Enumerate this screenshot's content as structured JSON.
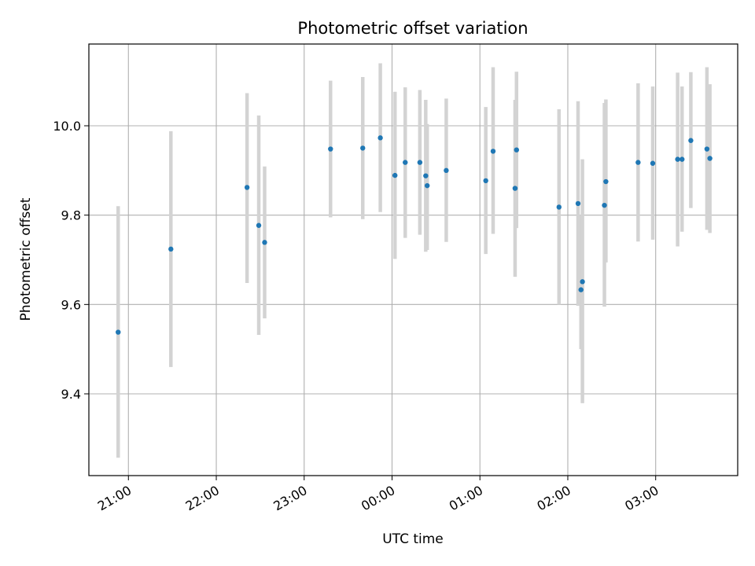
{
  "chart_data": {
    "type": "scatter",
    "title": "Photometric offset variation",
    "xlabel": "UTC time",
    "ylabel": "Photometric offset",
    "x_ticks": [
      "21:00",
      "22:00",
      "23:00",
      "00:00",
      "01:00",
      "02:00",
      "03:00"
    ],
    "y_ticks": [
      "9.4",
      "9.6",
      "9.8",
      "10.0"
    ],
    "xlim": [
      "20:33",
      "03:56"
    ],
    "ylim": [
      9.217,
      10.183
    ],
    "grid": true,
    "colors": {
      "point": "#1f77b4",
      "errorbar": "#d3d3d3",
      "grid": "#b0b0b0"
    },
    "points": [
      {
        "t": "20:53",
        "y": 9.538,
        "lo": 9.257,
        "hi": 9.82
      },
      {
        "t": "21:29",
        "y": 9.724,
        "lo": 9.46,
        "hi": 9.988
      },
      {
        "t": "22:21",
        "y": 9.862,
        "lo": 9.648,
        "hi": 10.073
      },
      {
        "t": "22:29",
        "y": 9.777,
        "lo": 9.532,
        "hi": 10.023
      },
      {
        "t": "22:33",
        "y": 9.739,
        "lo": 9.569,
        "hi": 9.909
      },
      {
        "t": "23:18",
        "y": 9.948,
        "lo": 9.795,
        "hi": 10.101
      },
      {
        "t": "23:40",
        "y": 9.95,
        "lo": 9.791,
        "hi": 10.109
      },
      {
        "t": "23:52",
        "y": 9.973,
        "lo": 9.807,
        "hi": 10.14
      },
      {
        "t": "00:02",
        "y": 9.889,
        "lo": 9.702,
        "hi": 10.076
      },
      {
        "t": "00:09",
        "y": 9.918,
        "lo": 9.749,
        "hi": 10.086
      },
      {
        "t": "00:19",
        "y": 9.918,
        "lo": 9.756,
        "hi": 10.08
      },
      {
        "t": "00:23",
        "y": 9.888,
        "lo": 9.718,
        "hi": 10.058
      },
      {
        "t": "00:24",
        "y": 9.866,
        "lo": 9.722,
        "hi": 10.004
      },
      {
        "t": "00:37",
        "y": 9.9,
        "lo": 9.74,
        "hi": 10.061
      },
      {
        "t": "01:04",
        "y": 9.877,
        "lo": 9.713,
        "hi": 10.042
      },
      {
        "t": "01:09",
        "y": 9.943,
        "lo": 9.758,
        "hi": 10.131
      },
      {
        "t": "01:24",
        "y": 9.86,
        "lo": 9.662,
        "hi": 10.058
      },
      {
        "t": "01:25",
        "y": 9.946,
        "lo": 9.771,
        "hi": 10.121
      },
      {
        "t": "01:54",
        "y": 9.818,
        "lo": 9.6,
        "hi": 10.037
      },
      {
        "t": "02:07",
        "y": 9.826,
        "lo": 9.597,
        "hi": 10.055
      },
      {
        "t": "02:09",
        "y": 9.633,
        "lo": 9.5,
        "hi": 9.8
      },
      {
        "t": "02:10",
        "y": 9.651,
        "lo": 9.379,
        "hi": 9.925
      },
      {
        "t": "02:25",
        "y": 9.822,
        "lo": 9.595,
        "hi": 10.051
      },
      {
        "t": "02:26",
        "y": 9.875,
        "lo": 9.694,
        "hi": 10.059
      },
      {
        "t": "02:48",
        "y": 9.918,
        "lo": 9.741,
        "hi": 10.095
      },
      {
        "t": "02:58",
        "y": 9.916,
        "lo": 9.745,
        "hi": 10.088
      },
      {
        "t": "03:15",
        "y": 9.925,
        "lo": 9.73,
        "hi": 10.119
      },
      {
        "t": "03:18",
        "y": 9.925,
        "lo": 9.763,
        "hi": 10.088
      },
      {
        "t": "03:24",
        "y": 9.967,
        "lo": 9.816,
        "hi": 10.12
      },
      {
        "t": "03:35",
        "y": 9.948,
        "lo": 9.767,
        "hi": 10.131
      },
      {
        "t": "03:37",
        "y": 9.927,
        "lo": 9.76,
        "hi": 10.093
      }
    ]
  }
}
